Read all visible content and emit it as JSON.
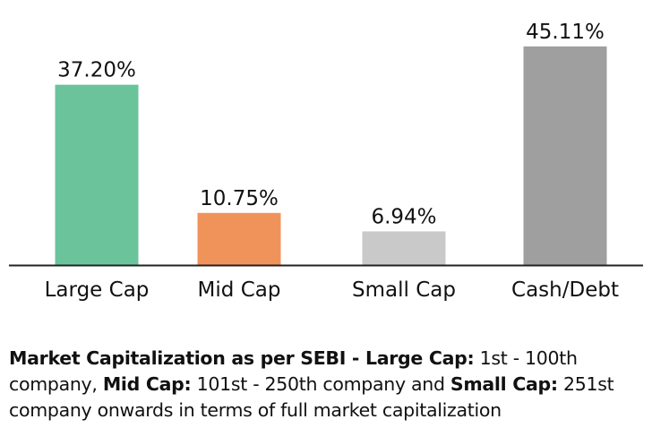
{
  "chart_data": {
    "type": "bar",
    "categories": [
      "Large Cap",
      "Mid Cap",
      "Small Cap",
      "Cash/Debt"
    ],
    "values": [
      37.2,
      10.75,
      6.94,
      45.11
    ],
    "data_labels": [
      "37.20%",
      "10.75%",
      "6.94%",
      "45.11%"
    ],
    "colors": [
      "#6bc39c",
      "#f0935b",
      "#c9c9c9",
      "#9f9f9f"
    ],
    "ylim": [
      0,
      46
    ],
    "grid": false,
    "title": "",
    "xlabel": "",
    "ylabel": ""
  },
  "note": {
    "part1_bold": "Market Capitalization as per SEBI - ",
    "part2_bold": "Large Cap:",
    "part3": " 1st - 100th company, ",
    "part4_bold": "Mid Cap:",
    "part5": " 101st - 250th company and ",
    "part6_bold": "Small Cap:",
    "part7": " 251st company onwards in terms of full market capitalization"
  }
}
